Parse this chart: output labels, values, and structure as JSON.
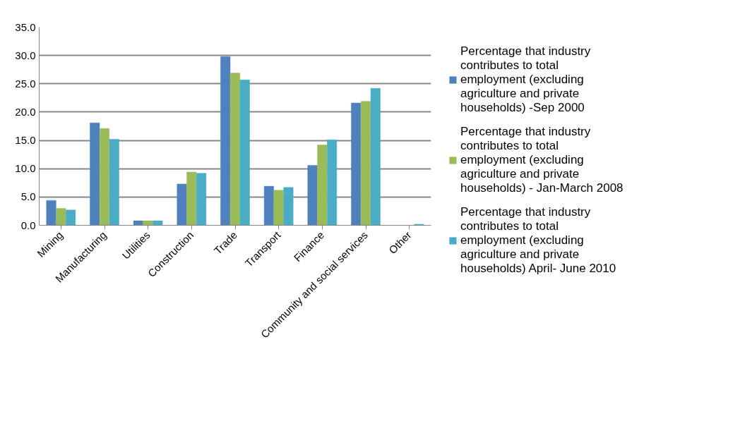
{
  "chart_data": {
    "type": "bar",
    "categories": [
      "Mining",
      "Manufacturing",
      "Utilities",
      "Construction",
      "Trade",
      "Transport",
      "Finance",
      "Community and social services",
      "Other"
    ],
    "series": [
      {
        "name": "Percentage that industry contributes to total employment (excluding agriculture and private households) -Sep 2000",
        "color": "#4f81bd",
        "values": [
          4.4,
          18.1,
          0.8,
          7.3,
          29.8,
          6.9,
          10.6,
          21.6,
          0
        ]
      },
      {
        "name": "Percentage that industry contributes to total employment (excluding agriculture and private households) - Jan-March 2008",
        "color": "#9bbb59",
        "values": [
          3.0,
          17.1,
          0.8,
          9.4,
          26.9,
          6.2,
          14.2,
          21.9,
          0
        ]
      },
      {
        "name": "Percentage that industry contributes to total employment (excluding agriculture and private households) April- June 2010",
        "color": "#4bacc6",
        "values": [
          2.7,
          15.2,
          0.8,
          9.2,
          25.7,
          6.7,
          15.1,
          24.2,
          0.2
        ]
      }
    ],
    "ylim": [
      0,
      35
    ],
    "yticks": [
      {
        "value": 0,
        "label": "0.0"
      },
      {
        "value": 5,
        "label": "5.0"
      },
      {
        "value": 10,
        "label": "10.0"
      },
      {
        "value": 15,
        "label": "15.0"
      },
      {
        "value": 20,
        "label": "20.0"
      },
      {
        "value": 25,
        "label": "25.0"
      },
      {
        "value": 30,
        "label": "30.0"
      },
      {
        "value": 35,
        "label": "35.0"
      }
    ],
    "grid": "y",
    "legend": "right"
  }
}
